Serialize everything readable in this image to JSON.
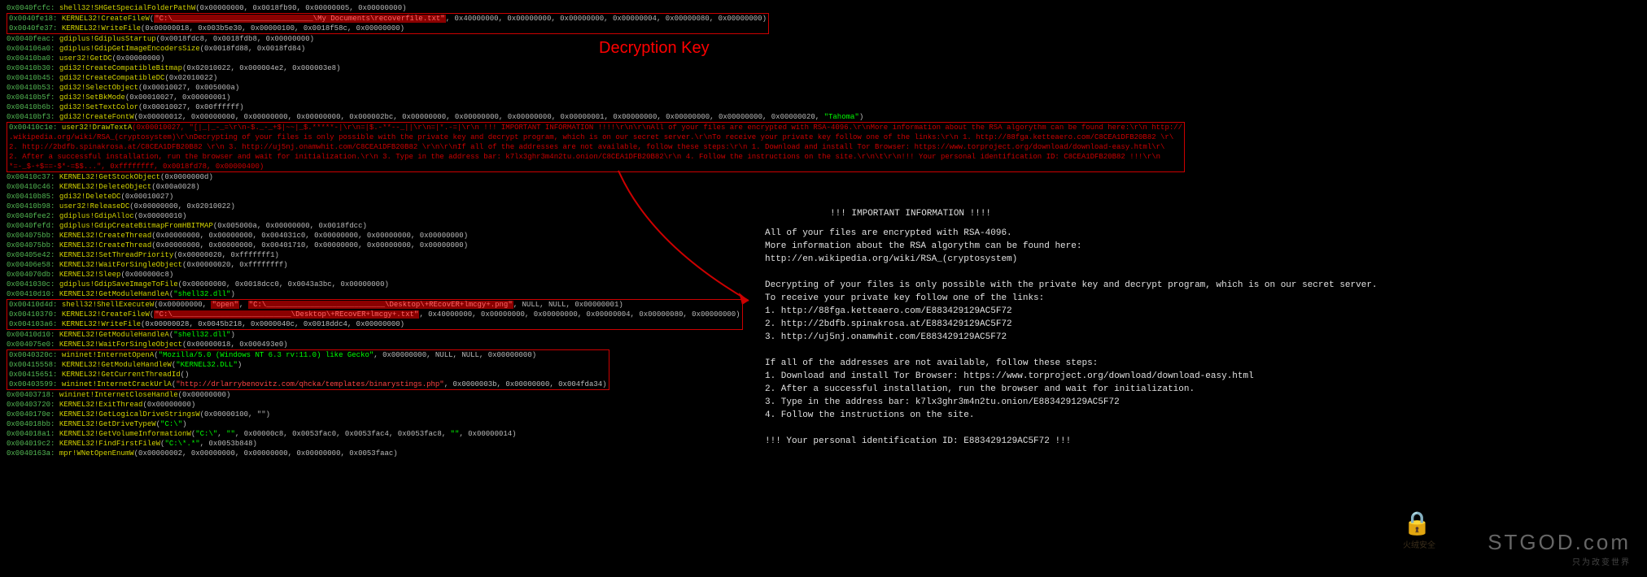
{
  "heading": "Decryption Key",
  "trace": [
    {
      "a": "0x0040fcfc",
      "f": "shell32!SHGetSpecialFolderPathW",
      "p": "(0x00000000, 0x0018fb90, 0x00000005, 0x00000000)",
      "type": "plain"
    },
    {
      "a": "0x0040fe18",
      "f": "KERNEL32!CreateFileW",
      "p": "(\"C:\\________________________________\\My Documents\\recoverfile.txt\", 0x40000000, 0x00000000, 0x00000000, 0x00000004, 0x00000080, 0x00000000)",
      "type": "redpath",
      "boxStart": true
    },
    {
      "a": "0x0040fe37",
      "f": "KERNEL32!WriteFile",
      "p": "(0x00000018, 0x003b5e30, 0x00000100, 0x0018f58c, 0x00000000)",
      "type": "plain",
      "boxEnd": true
    },
    {
      "a": "0x0040feac",
      "f": "gdiplus!GdiplusStartup",
      "p": "(0x0018fdc8, 0x0018fdb8, 0x00000000)",
      "type": "plain"
    },
    {
      "a": "0x004106a0",
      "f": "gdiplus!GdipGetImageEncodersSize",
      "p": "(0x0018fd88, 0x0018fd84)",
      "type": "plain"
    },
    {
      "a": "0x00410ba0",
      "f": "user32!GetDC",
      "p": "(0x00000000)",
      "type": "plain"
    },
    {
      "a": "0x00410b30",
      "f": "gdi32!CreateCompatibleBitmap",
      "p": "(0x02010022, 0x000004e2, 0x000003e8)",
      "type": "plain"
    },
    {
      "a": "0x00410b45",
      "f": "gdi32!CreateCompatibleDC",
      "p": "(0x02010022)",
      "type": "plain"
    },
    {
      "a": "0x00410b53",
      "f": "gdi32!SelectObject",
      "p": "(0x00010027, 0x005000a)",
      "type": "plain"
    },
    {
      "a": "0x00410b5f",
      "f": "gdi32!SetBkMode",
      "p": "(0x00010027, 0x00000001)",
      "type": "plain"
    },
    {
      "a": "0x00410b6b",
      "f": "gdi32!SetTextColor",
      "p": "(0x00010027, 0x00ffffff)",
      "type": "plain"
    },
    {
      "a": "0x00410bf3",
      "f": "gdi32!CreateFontW",
      "p": "(0x00000012, 0x00000000, 0x00000000, 0x00000000, 0x000002bc, 0x00000000, 0x00000000, 0x00000000, 0x00000001, 0x00000000, 0x00000000, 0x00000000, 0x00000020, \"Tahoma\")",
      "type": "str"
    },
    {
      "type": "ransom",
      "boxStart": true,
      "a": "0x00410c1e",
      "f": "user32!DrawTextA",
      "p": "(0x00010027, \"[|_|_-_=\\r\\n-$._-_+$|~~|_$.*****-|\\r\\n=|$.-**--_||\\r\\n=|*.-=|\\r\\n     !!! IMPORTANT INFORMATION !!!!\\r\\n\\r\\nAll of your files are encrypted with RSA-4096.\\r\\nMore information about the RSA algorythm can be found here:\\r\\n     http://"
    },
    {
      "type": "ransomline",
      "text": ".wikipedia.org/wiki/RSA_(cryptosystem)\\r\\nDecrypting of your files is only possible with the private key and decrypt program, which is on our secret server.\\r\\nTo receive your private key follow one of the links:\\r\\n   1. http://88fga.ketteaero.com/C8CEA1DFB20B82 \\r\\"
    },
    {
      "type": "ransomline",
      "text": "   2. http://2bdfb.spinakrosa.at/C8CEA1DFB20B82 \\r\\n   3. http://uj5nj.onamwhit.com/C8CEA1DFB20B82 \\r\\n\\r\\nIf all of the addresses are not available, follow these steps:\\r\\n   1. Download and install Tor Browser: https://www.torproject.org/download/download-easy.html\\r\\"
    },
    {
      "type": "ransomline",
      "text": "   2. After a successful installation, run the browser and wait for initialization.\\r\\n   3. Type in the address bar: k7lx3ghr3m4n2tu.onion/C8CEA1DFB20B82\\r\\n   4. Follow the instructions on the site.\\r\\n\\t\\r\\n!!! Your personal identification ID: C8CEA1DFB20B82 !!!\\r\\n"
    },
    {
      "type": "ransomline",
      "text": "*=-_$-+$==-$*-=$$...\", 0xffffffff, 0x0018fd78, 0x00000400)",
      "boxEnd": true
    },
    {
      "a": "0x00410c37",
      "f": "KERNEL32!GetStockObject",
      "p": "(0x0000000d)",
      "type": "plain"
    },
    {
      "a": "0x00410c46",
      "f": "KERNEL32!DeleteObject",
      "p": "(0x00a0028)",
      "type": "plain"
    },
    {
      "a": "0x00410b85",
      "f": "gdi32!DeleteDC",
      "p": "(0x00010027)",
      "type": "plain"
    },
    {
      "a": "0x00410b98",
      "f": "user32!ReleaseDC",
      "p": "(0x00000000, 0x02010022)",
      "type": "plain"
    },
    {
      "a": "0x0040fee2",
      "f": "gdiplus!GdipAlloc",
      "p": "(0x00000010)",
      "type": "plain"
    },
    {
      "a": "0x0040fefd",
      "f": "gdiplus!GdipCreateBitmapFromHBITMAP",
      "p": "(0x005000a, 0x00000000, 0x0018fdcc)",
      "type": "plain"
    },
    {
      "a": "0x004075bb",
      "f": "KERNEL32!CreateThread",
      "p": "(0x00000000, 0x00000000, 0x004031c0, 0x00000000, 0x00000000, 0x00000000)",
      "type": "plain"
    },
    {
      "a": "0x004075bb",
      "f": "KERNEL32!CreateThread",
      "p": "(0x00000000, 0x00000000, 0x00401710, 0x00000000, 0x00000000, 0x00000000)",
      "type": "plain"
    },
    {
      "a": "0x00405e42",
      "f": "KERNEL32!SetThreadPriority",
      "p": "(0x00000020, 0xfffffff1)",
      "type": "plain"
    },
    {
      "a": "0x00406e58",
      "f": "KERNEL32!WaitForSingleObject",
      "p": "(0x00000020, 0xffffffff)",
      "type": "plain"
    },
    {
      "a": "0x004070db",
      "f": "KERNEL32!Sleep",
      "p": "(0x000000c8)",
      "type": "plain"
    },
    {
      "a": "0x0041030c",
      "f": "gdiplus!GdipSaveImageToFile",
      "p": "(0x00000000, 0x0018dcc0, 0x0043a3bc, 0x00000000)",
      "type": "plain"
    },
    {
      "a": "0x00410d10",
      "f": "KERNEL32!GetModuleHandleA",
      "p": "(\"shell32.dll\")",
      "type": "str"
    },
    {
      "a": "0x00410d4d",
      "f": "shell32!ShellExecuteW",
      "p": "(0x00000000, \"open\", \"C:\\___________________________\\Desktop\\+REcovER+lmcgy+.png\", NULL, NULL, 0x00000001)",
      "type": "redpath",
      "boxStart": true
    },
    {
      "a": "0x00410370",
      "f": "KERNEL32!CreateFileW",
      "p": "(\"C:\\___________________________\\Desktop\\+REcovER+lmcgy+.txt\", 0x40000000, 0x00000000, 0x00000000, 0x00000004, 0x00000080, 0x00000000)",
      "type": "redpath"
    },
    {
      "a": "0x004103a6",
      "f": "KERNEL32!WriteFile",
      "p": "(0x00000028, 0x0045b218, 0x0000040c, 0x0018ddc4, 0x00000000)",
      "type": "plain",
      "boxEnd": true
    },
    {
      "a": "0x00410d10",
      "f": "KERNEL32!GetModuleHandleA",
      "p": "(\"shell32.dll\")",
      "type": "str"
    },
    {
      "a": "0x004075e0",
      "f": "KERNEL32!WaitForSingleObject",
      "p": "(0x00000018, 0x000493e0)",
      "type": "plain"
    },
    {
      "a": "0x0040320c",
      "f": "wininet!InternetOpenA",
      "p": "(\"Mozilla/5.0 (Windows NT 6.3 rv:11.0) like Gecko\", 0x00000000, NULL, NULL, 0x00000000)",
      "type": "str",
      "boxStart": true
    },
    {
      "a": "0x00415558",
      "f": "KERNEL32!GetModuleHandleW",
      "p": "(\"KERNEL32.DLL\")",
      "type": "str"
    },
    {
      "a": "0x00415651",
      "f": "KERNEL32!GetCurrentThreadId",
      "p": "()",
      "type": "plain"
    },
    {
      "a": "0x00403599",
      "f": "wininet!InternetCrackUrlA",
      "p": "(\"http://drlarrybenovitz.com/qhcka/templates/binarystings.php\", 0x0000003b, 0x00000000, 0x004fda34)",
      "type": "redurl",
      "boxEnd": true
    },
    {
      "a": "0x00403718",
      "f": "wininet!InternetCloseHandle",
      "p": "(0x00000000)",
      "type": "plain"
    },
    {
      "a": "0x00403720",
      "f": "KERNEL32!ExitThread",
      "p": "(0x00000000)",
      "type": "plain"
    },
    {
      "a": "0x0040170e",
      "f": "KERNEL32!GetLogicalDriveStringsW",
      "p": "(0x00000100, \"\")",
      "type": "plain"
    },
    {
      "a": "0x004018bb",
      "f": "KERNEL32!GetDriveTypeW",
      "p": "(\"C:\\\")",
      "type": "str"
    },
    {
      "a": "0x004018a1",
      "f": "KERNEL32!GetVolumeInformationW",
      "p": "(\"C:\\\", \"\", 0x00000c8, 0x0053fac0, 0x0053fac4, 0x0053fac8, \"\", 0x00000014)",
      "type": "str"
    },
    {
      "a": "0x004019c2",
      "f": "KERNEL32!FindFirstFileW",
      "p": "(\"C:\\*.*\", 0x0053b848)",
      "type": "str"
    },
    {
      "a": "0x0040163a",
      "f": "mpr!WNetOpenEnumW",
      "p": "(0x00000002, 0x00000000, 0x00000000, 0x00000000, 0x0053faac)",
      "type": "plain"
    }
  ],
  "note": {
    "title": "!!! IMPORTANT INFORMATION !!!!",
    "l1": "All of your files are encrypted with RSA-4096.",
    "l2": "More information about the RSA algorythm can be found here:",
    "l3": "    http://en.wikipedia.org/wiki/RSA_(cryptosystem)",
    "l4": "Decrypting of your files is only possible with the private key and decrypt program, which is on our secret server.",
    "l5": "To receive your private key follow one of the links:",
    "l6": "    1. http://88fga.ketteaero.com/E883429129AC5F72",
    "l7": "    2. http://2bdfb.spinakrosa.at/E883429129AC5F72",
    "l8": "    3. http://uj5nj.onamwhit.com/E883429129AC5F72",
    "l9": "If all of the addresses are not available, follow these steps:",
    "l10": "    1. Download and install Tor Browser: https://www.torproject.org/download/download-easy.html",
    "l11": "    2. After a successful installation, run the browser and wait for initialization.",
    "l12": "    3. Type in the address bar: k7lx3ghr3m4n2tu.onion/E883429129AC5F72",
    "l13": "    4. Follow the instructions on the site.",
    "l14": "!!! Your personal identification ID: E883429129AC5F72 !!!"
  },
  "watermark": {
    "big": "STGOD.com",
    "sm": "只为改变世界"
  },
  "colors": {
    "addr": "#53b853",
    "func": "#d4d400",
    "ransom": "#cc0000",
    "str": "#00ff00",
    "path": "#ff4444"
  }
}
